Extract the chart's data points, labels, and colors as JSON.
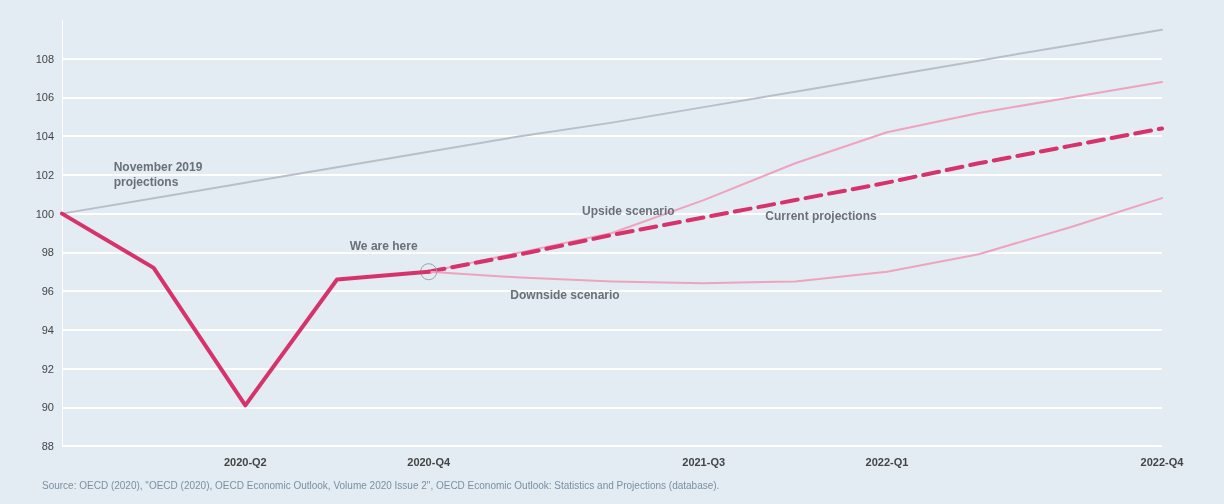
{
  "chart_data": {
    "type": "line",
    "categories": [
      null,
      null,
      "2020-Q2",
      null,
      "2020-Q4",
      null,
      null,
      "2021-Q3",
      null,
      "2022-Q1",
      null,
      null,
      "2022-Q4"
    ],
    "series": [
      {
        "color": "#d6336c",
        "values": [
          100,
          97.2,
          90.1,
          96.6,
          97.0,
          null,
          null,
          null,
          null,
          null,
          null,
          null,
          null
        ]
      },
      {
        "name": "November 2019 projections",
        "color": "#b9bfc9",
        "values": [
          100,
          100.8,
          101.6,
          102.4,
          103.2,
          104.0,
          104.7,
          105.5,
          106.3,
          107.1,
          107.9,
          108.7,
          109.5
        ]
      },
      {
        "name": "Upside scenario",
        "color": "#eea3be",
        "values": [
          null,
          null,
          null,
          null,
          97.0,
          98.0,
          99.0,
          100.7,
          102.6,
          104.2,
          105.2,
          106.0,
          106.8
        ]
      },
      {
        "name": "Current projections",
        "color": "#d6336c",
        "line_style": "dashed",
        "values": [
          null,
          null,
          null,
          null,
          97.0,
          97.9,
          98.9,
          99.8,
          100.7,
          101.6,
          102.6,
          103.5,
          104.4
        ]
      },
      {
        "name": "Downside scenario",
        "color": "#eea3be",
        "values": [
          null,
          null,
          null,
          null,
          97.0,
          96.7,
          96.5,
          96.4,
          96.5,
          97.0,
          97.9,
          99.3,
          100.8
        ]
      }
    ],
    "ylim": [
      88,
      110
    ],
    "yticks": [
      88,
      90,
      92,
      94,
      96,
      98,
      100,
      102,
      104,
      106,
      108
    ],
    "grid": "y",
    "marker": "none",
    "legend": false,
    "annotations": [
      "We are here",
      "Source: OECD (2020), \"OECD (2020), OECD Economic Outlook, Volume 2020 Issue 2\", OECD Economic Outlook: Statistics and Projections (database)."
    ]
  }
}
